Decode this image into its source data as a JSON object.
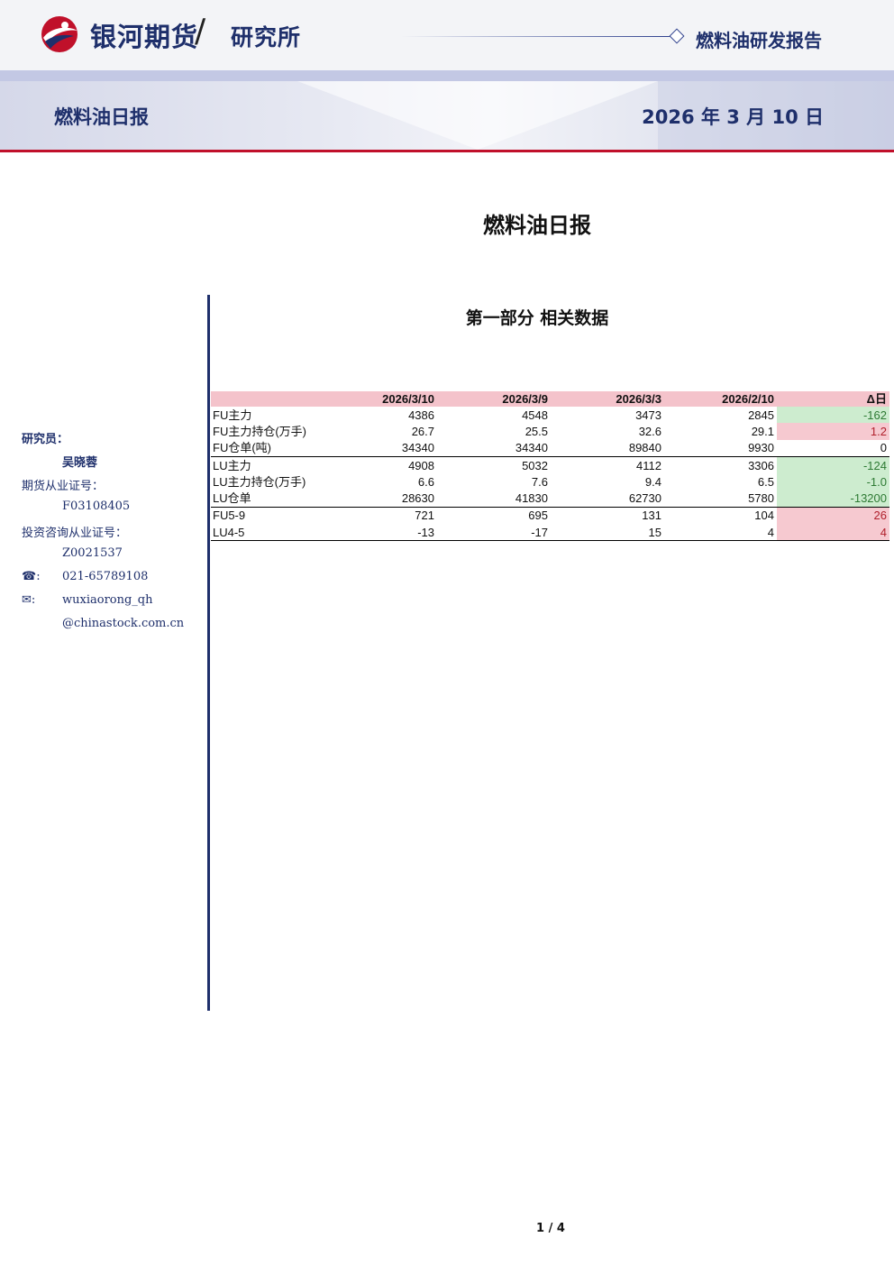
{
  "header": {
    "brand": "银河期货",
    "slash": "/",
    "brand_sub": "研究所",
    "report_kind": "燃料油研发报告",
    "band_title": "燃料油日报",
    "band_date": "2026 年 3 月 10 日"
  },
  "doc_title": "燃料油日报",
  "section_title": "第一部分 相关数据",
  "sidebar": {
    "researcher_label": "研究员：",
    "researcher_name": "吴晓蓉",
    "futures_cert_label": "期货从业证号：",
    "futures_cert": "F03108405",
    "advisory_cert_label": "投资咨询从业证号：",
    "advisory_cert": "Z0021537",
    "phone_icon": "☎:",
    "phone": "021-65789108",
    "email_icon": "✉:",
    "email_1": "wuxiaorong_qh",
    "email_2": "@chinastock.com.cn"
  },
  "table": {
    "headers": [
      "",
      "2026/3/10",
      "2026/3/9",
      "2026/3/3",
      "2026/2/10",
      "Δ日"
    ],
    "rows": [
      {
        "label": "FU主力",
        "v": [
          "4386",
          "4548",
          "3473",
          "2845"
        ],
        "delta": "-162",
        "sign": "neg"
      },
      {
        "label": "FU主力持仓(万手)",
        "v": [
          "26.7",
          "25.5",
          "32.6",
          "29.1"
        ],
        "delta": "1.2",
        "sign": "pos"
      },
      {
        "label": "FU仓单(吨)",
        "v": [
          "34340",
          "34340",
          "89840",
          "9930"
        ],
        "delta": "0",
        "sign": "zero"
      },
      {
        "label": "LU主力",
        "v": [
          "4908",
          "5032",
          "4112",
          "3306"
        ],
        "delta": "-124",
        "sign": "neg"
      },
      {
        "label": "LU主力持仓(万手)",
        "v": [
          "6.6",
          "7.6",
          "9.4",
          "6.5"
        ],
        "delta": "-1.0",
        "sign": "neg"
      },
      {
        "label": "LU仓单",
        "v": [
          "28630",
          "41830",
          "62730",
          "5780"
        ],
        "delta": "-13200",
        "sign": "neg"
      },
      {
        "label": "FU5-9",
        "v": [
          "721",
          "695",
          "131",
          "104"
        ],
        "delta": "26",
        "sign": "pos"
      },
      {
        "label": "LU4-5",
        "v": [
          "-13",
          "-17",
          "15",
          "4"
        ],
        "delta": "4",
        "sign": "pos"
      }
    ]
  },
  "page_number": "1 / 4"
}
